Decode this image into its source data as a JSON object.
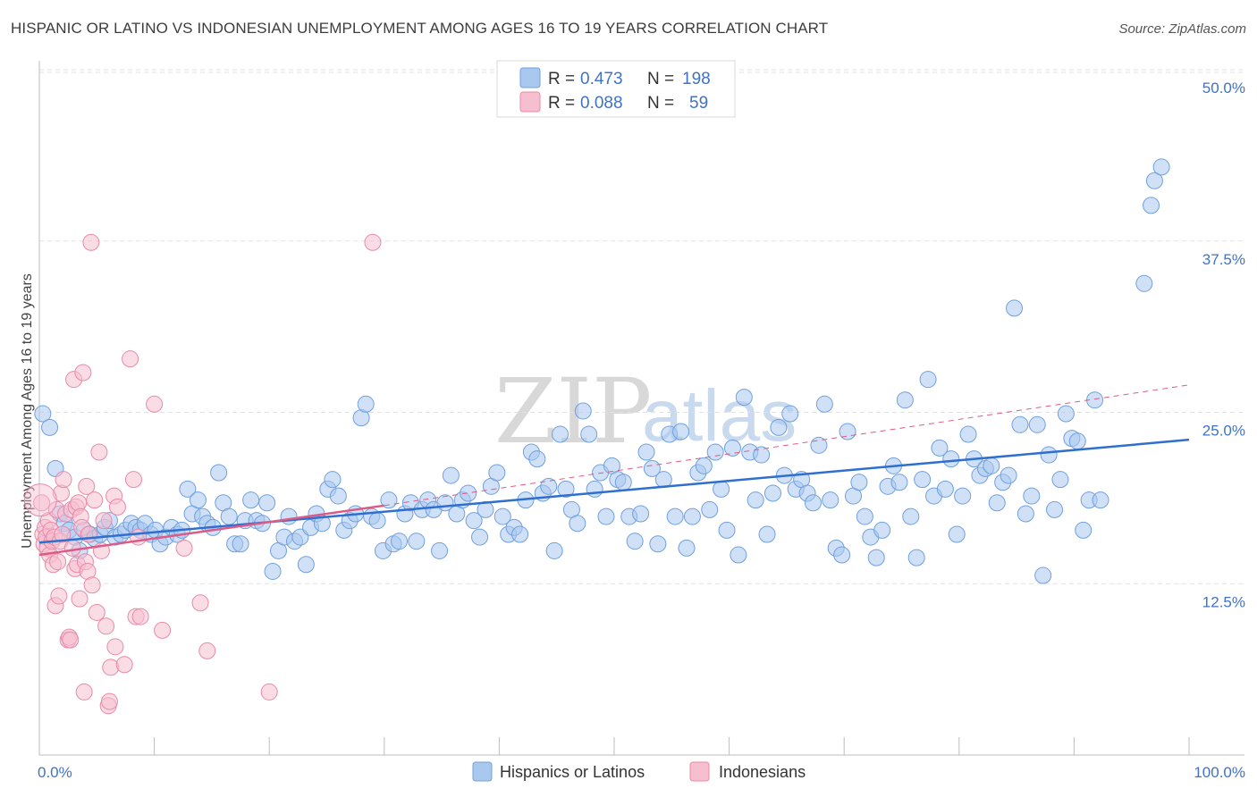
{
  "header": {
    "title": "HISPANIC OR LATINO VS INDONESIAN UNEMPLOYMENT AMONG AGES 16 TO 19 YEARS CORRELATION CHART",
    "source": "Source: ZipAtlas.com"
  },
  "watermark": {
    "zip": "ZIP",
    "atlas": "atlas"
  },
  "legend": {
    "rows": [
      {
        "r_label": "R =",
        "r_value": "0.473",
        "n_label": "N =",
        "n_value": "198",
        "color": "#a9c8f0",
        "stroke": "#6fa0de"
      },
      {
        "r_label": "R =",
        "r_value": "0.088",
        "n_label": "N =",
        "n_value": "59",
        "color": "#f6bfd0",
        "stroke": "#e88aa8"
      }
    ]
  },
  "bottom_legend": {
    "items": [
      {
        "label": "Hispanics or Latinos",
        "color": "#a9c8f0",
        "stroke": "#6fa0de"
      },
      {
        "label": "Indonesians",
        "color": "#f6bfd0",
        "stroke": "#e88aa8"
      }
    ]
  },
  "chart_data": {
    "type": "scatter",
    "title": "HISPANIC OR LATINO VS INDONESIAN UNEMPLOYMENT AMONG AGES 16 TO 19 YEARS CORRELATION CHART",
    "xlabel": "",
    "ylabel": "Unemployment Among Ages 16 to 19 years",
    "xlim": [
      0,
      100
    ],
    "ylim": [
      0,
      50
    ],
    "x_tick_labels": [
      "0.0%",
      "100.0%"
    ],
    "y_ticks": [
      12.5,
      25.0,
      37.5,
      50.0
    ],
    "y_tick_labels": [
      "12.5%",
      "25.0%",
      "37.5%",
      "50.0%"
    ],
    "grid": true,
    "series": [
      {
        "name": "Hispanics or Latinos",
        "color": "#a9c8f0",
        "stroke": "#6fa0de",
        "trend": {
          "x0": 0,
          "y0": 15.5,
          "x1": 100,
          "y1": 23.0,
          "color": "#2f6fcf"
        },
        "points": [
          [
            0.3,
            24.9
          ],
          [
            0.9,
            23.9
          ],
          [
            1.4,
            20.9
          ],
          [
            1.8,
            17.6
          ],
          [
            2.2,
            16.9
          ],
          [
            2.6,
            16.4
          ],
          [
            3.1,
            15.9
          ],
          [
            3.5,
            14.9
          ],
          [
            3.9,
            16.4
          ],
          [
            4.4,
            16.1
          ],
          [
            4.8,
            15.8
          ],
          [
            5.3,
            16.1
          ],
          [
            5.7,
            16.6
          ],
          [
            6.1,
            17.1
          ],
          [
            6.6,
            15.9
          ],
          [
            7.1,
            16.1
          ],
          [
            7.5,
            16.4
          ],
          [
            8.0,
            16.9
          ],
          [
            8.4,
            16.6
          ],
          [
            8.8,
            16.4
          ],
          [
            9.2,
            16.9
          ],
          [
            9.7,
            16.1
          ],
          [
            10.1,
            16.4
          ],
          [
            10.5,
            15.4
          ],
          [
            11.0,
            15.9
          ],
          [
            11.5,
            16.6
          ],
          [
            12.0,
            16.1
          ],
          [
            12.4,
            16.4
          ],
          [
            12.9,
            19.4
          ],
          [
            13.3,
            17.6
          ],
          [
            13.8,
            18.6
          ],
          [
            14.2,
            17.4
          ],
          [
            14.6,
            16.9
          ],
          [
            15.1,
            16.6
          ],
          [
            15.6,
            20.6
          ],
          [
            16.0,
            18.4
          ],
          [
            16.5,
            17.4
          ],
          [
            17.0,
            15.4
          ],
          [
            17.5,
            15.4
          ],
          [
            17.9,
            17.1
          ],
          [
            18.4,
            18.6
          ],
          [
            18.9,
            17.1
          ],
          [
            19.4,
            16.9
          ],
          [
            19.8,
            18.4
          ],
          [
            20.3,
            13.4
          ],
          [
            20.8,
            14.9
          ],
          [
            21.3,
            15.9
          ],
          [
            21.7,
            17.4
          ],
          [
            22.2,
            15.6
          ],
          [
            22.7,
            15.9
          ],
          [
            23.2,
            13.9
          ],
          [
            23.6,
            16.6
          ],
          [
            24.1,
            17.6
          ],
          [
            24.6,
            16.9
          ],
          [
            25.1,
            19.4
          ],
          [
            25.5,
            20.1
          ],
          [
            26.0,
            18.9
          ],
          [
            26.5,
            16.4
          ],
          [
            27.0,
            17.1
          ],
          [
            27.5,
            17.6
          ],
          [
            28.0,
            24.6
          ],
          [
            28.4,
            25.6
          ],
          [
            28.9,
            17.4
          ],
          [
            29.4,
            17.1
          ],
          [
            29.9,
            14.9
          ],
          [
            30.4,
            18.6
          ],
          [
            30.8,
            15.4
          ],
          [
            31.3,
            15.6
          ],
          [
            31.8,
            17.6
          ],
          [
            32.3,
            18.4
          ],
          [
            32.8,
            15.6
          ],
          [
            33.3,
            17.9
          ],
          [
            33.8,
            18.6
          ],
          [
            34.3,
            17.9
          ],
          [
            34.8,
            14.9
          ],
          [
            35.3,
            18.4
          ],
          [
            35.8,
            20.4
          ],
          [
            36.3,
            17.6
          ],
          [
            36.8,
            18.6
          ],
          [
            37.3,
            19.1
          ],
          [
            37.8,
            17.1
          ],
          [
            38.3,
            15.9
          ],
          [
            38.8,
            17.9
          ],
          [
            39.3,
            19.6
          ],
          [
            39.8,
            20.6
          ],
          [
            40.3,
            17.4
          ],
          [
            40.8,
            16.1
          ],
          [
            41.3,
            16.6
          ],
          [
            41.8,
            16.1
          ],
          [
            42.3,
            18.6
          ],
          [
            42.8,
            22.1
          ],
          [
            43.3,
            21.6
          ],
          [
            43.8,
            19.1
          ],
          [
            44.3,
            19.6
          ],
          [
            44.8,
            14.9
          ],
          [
            45.3,
            23.4
          ],
          [
            45.8,
            19.4
          ],
          [
            46.3,
            17.9
          ],
          [
            46.8,
            16.9
          ],
          [
            47.3,
            25.1
          ],
          [
            47.8,
            23.4
          ],
          [
            48.3,
            19.4
          ],
          [
            48.8,
            20.6
          ],
          [
            49.3,
            17.4
          ],
          [
            49.8,
            21.1
          ],
          [
            50.3,
            20.1
          ],
          [
            50.8,
            19.9
          ],
          [
            51.3,
            17.4
          ],
          [
            51.8,
            15.6
          ],
          [
            52.3,
            17.6
          ],
          [
            52.8,
            22.1
          ],
          [
            53.3,
            20.9
          ],
          [
            53.8,
            15.4
          ],
          [
            54.3,
            20.1
          ],
          [
            54.8,
            23.4
          ],
          [
            55.3,
            17.4
          ],
          [
            55.8,
            23.6
          ],
          [
            56.3,
            15.1
          ],
          [
            56.8,
            17.4
          ],
          [
            57.3,
            20.6
          ],
          [
            57.8,
            21.1
          ],
          [
            58.3,
            17.9
          ],
          [
            58.8,
            22.1
          ],
          [
            59.3,
            19.4
          ],
          [
            59.8,
            16.4
          ],
          [
            60.3,
            22.4
          ],
          [
            60.8,
            14.6
          ],
          [
            61.3,
            26.1
          ],
          [
            61.8,
            22.1
          ],
          [
            62.3,
            18.6
          ],
          [
            62.8,
            21.9
          ],
          [
            63.3,
            16.1
          ],
          [
            63.8,
            19.1
          ],
          [
            64.3,
            23.9
          ],
          [
            64.8,
            20.4
          ],
          [
            65.3,
            24.9
          ],
          [
            65.8,
            19.4
          ],
          [
            66.3,
            20.1
          ],
          [
            66.8,
            19.1
          ],
          [
            67.3,
            18.4
          ],
          [
            67.8,
            22.6
          ],
          [
            68.3,
            25.6
          ],
          [
            68.8,
            18.6
          ],
          [
            69.3,
            15.1
          ],
          [
            69.8,
            14.6
          ],
          [
            70.3,
            23.6
          ],
          [
            70.8,
            18.9
          ],
          [
            71.3,
            19.9
          ],
          [
            71.8,
            17.4
          ],
          [
            72.3,
            15.9
          ],
          [
            72.8,
            14.4
          ],
          [
            73.3,
            16.4
          ],
          [
            73.8,
            19.6
          ],
          [
            74.3,
            21.1
          ],
          [
            74.8,
            19.9
          ],
          [
            75.3,
            25.9
          ],
          [
            75.8,
            17.4
          ],
          [
            76.3,
            14.4
          ],
          [
            76.8,
            20.1
          ],
          [
            77.3,
            27.4
          ],
          [
            77.8,
            18.9
          ],
          [
            78.3,
            22.4
          ],
          [
            78.8,
            19.4
          ],
          [
            79.3,
            21.6
          ],
          [
            79.8,
            16.1
          ],
          [
            80.3,
            18.9
          ],
          [
            80.8,
            23.4
          ],
          [
            81.3,
            21.6
          ],
          [
            81.8,
            20.4
          ],
          [
            82.3,
            20.9
          ],
          [
            82.8,
            21.1
          ],
          [
            83.3,
            18.4
          ],
          [
            83.8,
            19.9
          ],
          [
            84.3,
            20.4
          ],
          [
            84.8,
            32.6
          ],
          [
            85.3,
            24.1
          ],
          [
            85.8,
            17.6
          ],
          [
            86.3,
            18.9
          ],
          [
            86.8,
            24.1
          ],
          [
            87.3,
            13.1
          ],
          [
            87.8,
            21.9
          ],
          [
            88.3,
            17.9
          ],
          [
            88.8,
            20.1
          ],
          [
            89.3,
            24.9
          ],
          [
            89.8,
            23.1
          ],
          [
            90.3,
            22.9
          ],
          [
            90.8,
            16.4
          ],
          [
            91.3,
            18.6
          ],
          [
            91.8,
            25.9
          ],
          [
            92.3,
            18.6
          ],
          [
            96.1,
            34.4
          ],
          [
            96.7,
            40.1
          ],
          [
            97.0,
            41.9
          ],
          [
            97.6,
            42.9
          ]
        ]
      },
      {
        "name": "Indonesians",
        "color": "#f6bfd0",
        "stroke": "#e88aa8",
        "trend": {
          "x0": 0,
          "y0": 14.6,
          "x1": 30,
          "y1": 18.2,
          "color": "#dd5a87",
          "dashed_x1": 100,
          "dashed_y1": 27.0
        },
        "points": [
          [
            0.2,
            18.4
          ],
          [
            0.3,
            16.1
          ],
          [
            0.4,
            15.4
          ],
          [
            0.5,
            16.6
          ],
          [
            0.6,
            15.9
          ],
          [
            0.7,
            15.1
          ],
          [
            0.8,
            17.1
          ],
          [
            0.9,
            14.6
          ],
          [
            1.0,
            16.4
          ],
          [
            1.1,
            15.6
          ],
          [
            1.2,
            13.9
          ],
          [
            1.3,
            15.9
          ],
          [
            1.4,
            10.9
          ],
          [
            1.5,
            17.9
          ],
          [
            1.6,
            14.1
          ],
          [
            1.7,
            11.6
          ],
          [
            1.8,
            15.6
          ],
          [
            1.9,
            19.1
          ],
          [
            2.0,
            16.1
          ],
          [
            2.1,
            20.1
          ],
          [
            2.3,
            17.6
          ],
          [
            2.5,
            8.4
          ],
          [
            2.6,
            8.6
          ],
          [
            2.7,
            8.4
          ],
          [
            2.8,
            17.9
          ],
          [
            2.9,
            15.1
          ],
          [
            3.0,
            27.4
          ],
          [
            3.1,
            13.6
          ],
          [
            3.2,
            18.1
          ],
          [
            3.3,
            13.9
          ],
          [
            3.4,
            18.4
          ],
          [
            3.5,
            11.4
          ],
          [
            3.6,
            17.4
          ],
          [
            3.7,
            16.6
          ],
          [
            3.8,
            27.9
          ],
          [
            3.9,
            4.6
          ],
          [
            4.0,
            14.1
          ],
          [
            4.1,
            19.6
          ],
          [
            4.2,
            13.4
          ],
          [
            4.3,
            16.1
          ],
          [
            4.5,
            37.4
          ],
          [
            4.6,
            12.4
          ],
          [
            4.8,
            18.6
          ],
          [
            5.0,
            10.4
          ],
          [
            5.2,
            22.1
          ],
          [
            5.4,
            14.9
          ],
          [
            5.6,
            17.1
          ],
          [
            5.8,
            9.4
          ],
          [
            6.0,
            3.6
          ],
          [
            6.1,
            3.9
          ],
          [
            6.2,
            6.4
          ],
          [
            6.5,
            18.9
          ],
          [
            6.6,
            7.9
          ],
          [
            6.8,
            18.1
          ],
          [
            7.4,
            6.6
          ],
          [
            7.9,
            28.9
          ],
          [
            8.2,
            20.1
          ],
          [
            8.4,
            10.1
          ],
          [
            8.6,
            15.9
          ]
        ],
        "far_points": [
          [
            8.8,
            10.1
          ],
          [
            10.0,
            25.6
          ],
          [
            10.7,
            9.1
          ],
          [
            12.6,
            15.1
          ],
          [
            14.0,
            11.1
          ],
          [
            14.6,
            7.6
          ],
          [
            20.0,
            4.6
          ],
          [
            29.0,
            37.4
          ]
        ]
      }
    ]
  }
}
